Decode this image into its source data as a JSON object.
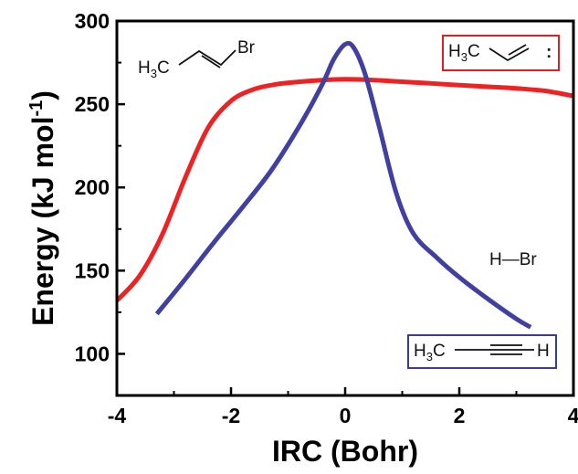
{
  "chart_data": {
    "type": "line",
    "title": "",
    "xlabel": "IRC (Bohr)",
    "ylabel_main": "Energy (kJ mol",
    "ylabel_sup": "-1",
    "ylabel_close": ")",
    "xlim": [
      -4,
      4
    ],
    "ylim": [
      75,
      300
    ],
    "x_ticks": [
      -4,
      -2,
      0,
      2,
      4
    ],
    "x_tick_labels": [
      "-4",
      "-2",
      "0",
      "2",
      "4"
    ],
    "y_ticks": [
      100,
      150,
      200,
      250,
      300
    ],
    "y_tick_labels": [
      "100",
      "150",
      "200",
      "250",
      "300"
    ],
    "grid": false,
    "legend": "none",
    "series": [
      {
        "color": "#ee2222",
        "x": [
          -4.0,
          -3.6,
          -3.2,
          -2.8,
          -2.4,
          -2.0,
          -1.6,
          -1.2,
          -0.8,
          -0.4,
          0.0,
          0.5,
          1.0,
          1.5,
          2.0,
          2.5,
          3.0,
          3.5,
          4.0
        ],
        "y": [
          132,
          147,
          172,
          206,
          236,
          252,
          259,
          262,
          263.5,
          264.5,
          265,
          264.5,
          263.5,
          262.5,
          261.5,
          260.5,
          259.5,
          258,
          255
        ]
      },
      {
        "color": "#4040a0",
        "x": [
          -3.3,
          -2.8,
          -2.3,
          -1.8,
          -1.3,
          -0.8,
          -0.4,
          -0.2,
          0.0,
          0.15,
          0.35,
          0.6,
          0.9,
          1.2,
          1.6,
          2.0,
          2.5,
          3.0,
          3.25
        ],
        "y": [
          124,
          145,
          167,
          188,
          210,
          237,
          262,
          277,
          286,
          284,
          268,
          236,
          196,
          172,
          158,
          146,
          133,
          121,
          116
        ]
      }
    ],
    "annotations": {
      "reactant_h3": "H",
      "reactant_3": "3",
      "reactant_c": "C",
      "reactant_br": "Br",
      "carbene_h3": "H",
      "carbene_3": "3",
      "carbene_c": "C",
      "carbene_colon": ":",
      "hbr": "H—Br",
      "alkyne_h3": "H",
      "alkyne_3": "3",
      "alkyne_c": "C",
      "alkyne_h": "H"
    },
    "colors": {
      "carbene_box": "#e02020",
      "alkyne_box": "#3a3aa0"
    }
  }
}
